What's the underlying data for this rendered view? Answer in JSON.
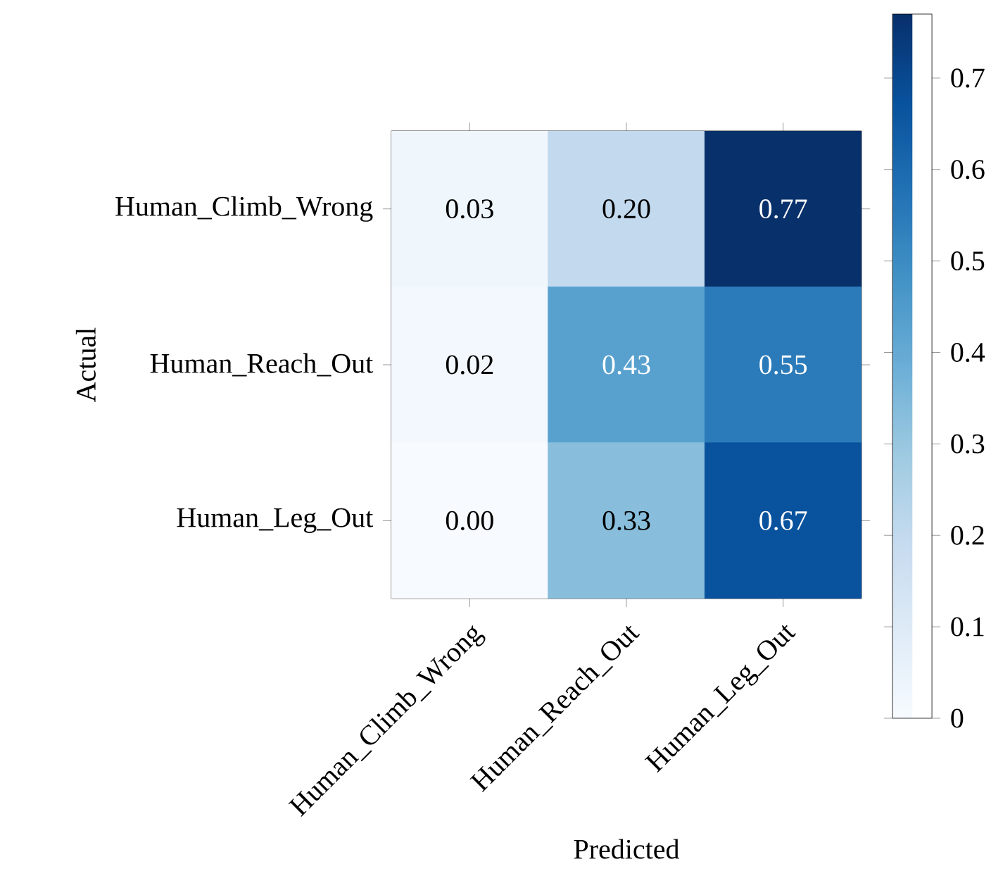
{
  "chart_data": {
    "type": "heatmap",
    "xlabel": "Predicted",
    "ylabel": "Actual",
    "categories": [
      "Human_Climb_Wrong",
      "Human_Reach_Out",
      "Human_Leg_Out"
    ],
    "y_categories": [
      "Human_Climb_Wrong",
      "Human_Reach_Out",
      "Human_Leg_Out"
    ],
    "cells": [
      [
        0.03,
        0.2,
        0.77
      ],
      [
        0.02,
        0.43,
        0.55
      ],
      [
        0.0,
        0.33,
        0.67
      ]
    ],
    "cell_labels": [
      [
        "0.03",
        "0.20",
        "0.77"
      ],
      [
        "0.02",
        "0.43",
        "0.55"
      ],
      [
        "0.00",
        "0.33",
        "0.67"
      ]
    ],
    "clim": [
      0,
      0.77
    ],
    "cticks": [
      0,
      0.1,
      0.2,
      0.3,
      0.4,
      0.5,
      0.6,
      0.7
    ]
  }
}
